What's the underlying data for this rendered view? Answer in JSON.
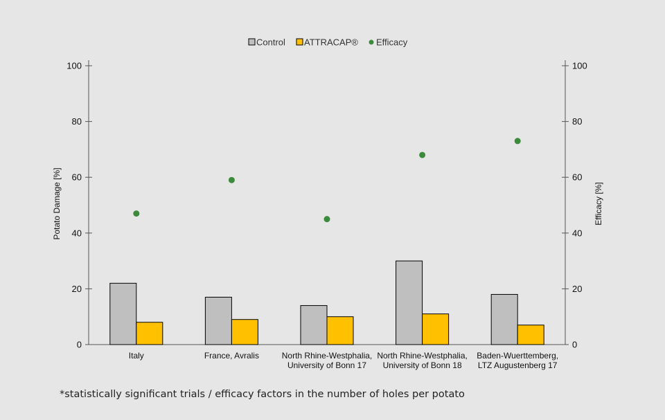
{
  "colors": {
    "control": "#bfbfbf",
    "attracap": "#ffc000",
    "efficacy": "#3c8a3c",
    "background": "#e6e6e6",
    "axis": "#555555"
  },
  "chart_data": {
    "type": "bar",
    "categories": [
      [
        "Italy"
      ],
      [
        "France, Avralis"
      ],
      [
        "North Rhine-Westphalia,",
        "University of Bonn 17"
      ],
      [
        "North Rhine-Westphalia,",
        "University of Bonn 18"
      ],
      [
        "Baden-Wuerttemberg,",
        "LTZ Augustenberg 17"
      ]
    ],
    "series": [
      {
        "name": "Control",
        "kind": "bar",
        "axis": "left",
        "values": [
          22,
          17,
          14,
          30,
          18
        ]
      },
      {
        "name": "ATTRACAP®",
        "kind": "bar",
        "axis": "left",
        "values": [
          8,
          9,
          10,
          11,
          7
        ]
      },
      {
        "name": "Efficacy",
        "kind": "scatter",
        "axis": "right",
        "values": [
          47,
          59,
          45,
          68,
          73
        ]
      }
    ],
    "ylabel": "Potato Damage [%]",
    "y2label": "Efficacy [%]",
    "ylim": [
      0,
      100
    ],
    "y2lim": [
      0,
      100
    ],
    "yticks": [
      0,
      20,
      40,
      60,
      80,
      100
    ],
    "legend_position": "top-center",
    "grid": false
  },
  "footnote": "*statistically significant trials / efficacy factors in the number of holes per potato"
}
